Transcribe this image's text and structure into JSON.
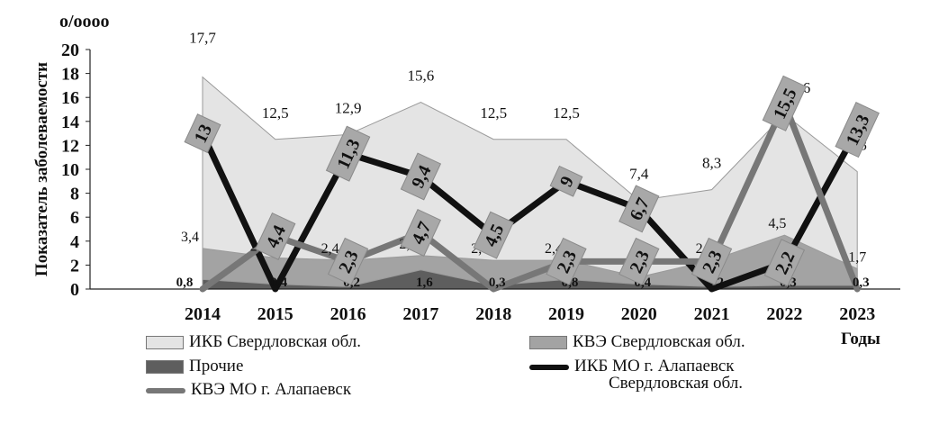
{
  "chart_data": {
    "type": "area",
    "title": "",
    "ylabel": "Показатель заболеваемости",
    "yunit": "o/oooo",
    "xlabel": "Годы",
    "ylim": [
      0,
      20
    ],
    "yticks": [
      "0",
      "2",
      "4",
      "6",
      "8",
      "10",
      "12",
      "14",
      "16",
      "18",
      "20"
    ],
    "categories": [
      "2014",
      "2015",
      "2016",
      "2017",
      "2018",
      "2019",
      "2020",
      "2021",
      "2022",
      "2023"
    ],
    "grid": false,
    "legend_placement": "bottom",
    "series": [
      {
        "name": "ИКБ Свердловская обл.",
        "kind": "area",
        "color": "#e4e4e4",
        "values": [
          17.7,
          12.5,
          12.9,
          15.6,
          12.5,
          12.5,
          7.4,
          8.3,
          14.6,
          9.8
        ],
        "labels": [
          "17,7",
          "12,5",
          "12,9",
          "15,6",
          "12,5",
          "12,5",
          "7,4",
          "8,3",
          "14,6",
          "9,8"
        ]
      },
      {
        "name": "КВЭ Свердловская обл.",
        "kind": "area",
        "color": "#a3a3a3",
        "values": [
          3.4,
          2.6,
          2.4,
          2.8,
          2.4,
          2.4,
          1,
          2.4,
          4.5,
          1.7
        ],
        "labels": [
          "3,4",
          "2,6",
          "2,4",
          "2,8",
          "2,4",
          "2,4",
          "1",
          "2,4",
          "4,5",
          "1,7"
        ]
      },
      {
        "name": "Прочие",
        "kind": "area",
        "color": "#5e5e5e",
        "values": [
          0.8,
          0.4,
          0.2,
          1.6,
          0.3,
          0.8,
          0.4,
          0.2,
          0.3,
          0.3
        ],
        "labels": [
          "0,8",
          "0,4",
          "0,2",
          "1,6",
          "0,3",
          "0,8",
          "0,4",
          "0,2",
          "0,3",
          "0,3"
        ]
      },
      {
        "name": "ИКБ МО г. Алапаевск",
        "kind": "line",
        "color": "#111111",
        "values": [
          13,
          0,
          11.3,
          9.4,
          4.5,
          9,
          6.7,
          0,
          2.2,
          13.3
        ],
        "labels": [
          "13",
          "",
          "11,3",
          "9,4",
          "4,5",
          "9",
          "6,7",
          "",
          "2,2",
          "13,3"
        ]
      },
      {
        "name": "КВЭ МО г. Алапаевск",
        "kind": "line",
        "color": "#777777",
        "values": [
          0,
          4.4,
          2.3,
          4.7,
          0,
          2.3,
          2.3,
          2.3,
          15.5,
          0
        ],
        "labels": [
          "",
          "4,4",
          "2,3",
          "4,7",
          "",
          "2,3",
          "2,3",
          "2,3",
          "15,5",
          ""
        ]
      }
    ],
    "legend_extra_text": "Свердловская обл."
  }
}
